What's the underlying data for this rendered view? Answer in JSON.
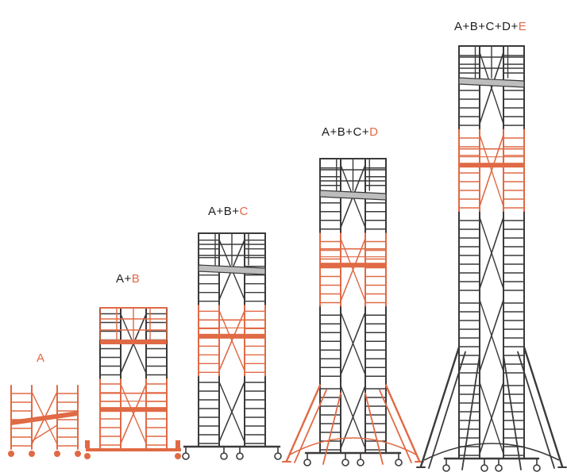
{
  "colors": {
    "frame": "#3a3a3a",
    "accent": "#e06a45",
    "platform_fill": "#bdbdbd",
    "background": "#ffffff"
  },
  "towers": [
    {
      "name": "tower-a",
      "label_parts": [
        {
          "text": "A",
          "accent": true
        }
      ],
      "modules": 1,
      "highlight_module": 0,
      "base": "wheels-low",
      "outriggers": false
    },
    {
      "name": "tower-a-b",
      "label_parts": [
        {
          "text": "A+",
          "accent": false
        },
        {
          "text": "B",
          "accent": true
        }
      ],
      "modules": 2,
      "highlight_module": 1,
      "base": "base-frame",
      "outriggers": false
    },
    {
      "name": "tower-a-b-c",
      "label_parts": [
        {
          "text": "A+B+",
          "accent": false
        },
        {
          "text": "C",
          "accent": true
        }
      ],
      "modules": 3,
      "highlight_module": 2,
      "base": "castors",
      "outriggers": false
    },
    {
      "name": "tower-a-b-c-d",
      "label_parts": [
        {
          "text": "A+B+C+",
          "accent": false
        },
        {
          "text": "D",
          "accent": true
        }
      ],
      "modules": 4,
      "highlight_module": 3,
      "base": "castors",
      "outriggers": true,
      "outrigger_accent": true
    },
    {
      "name": "tower-a-b-c-d-e",
      "label_parts": [
        {
          "text": "A+B+C+D+",
          "accent": false
        },
        {
          "text": "E",
          "accent": true
        }
      ],
      "modules": 5,
      "highlight_module": 4,
      "base": "castors",
      "outriggers": true,
      "outrigger_accent": false
    }
  ]
}
